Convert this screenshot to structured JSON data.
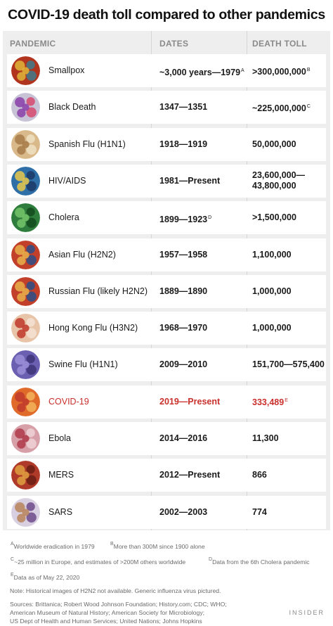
{
  "title": "COVID-19 death toll compared to other pandemics",
  "headers": {
    "pandemic": "PANDEMIC",
    "dates": "DATES",
    "toll": "DEATH TOLL"
  },
  "rows": [
    {
      "name": "Smallpox",
      "dates": "~3,000 years—1979",
      "dates_sup": "A",
      "toll": ">300,000,000",
      "toll_sup": "B",
      "colors": [
        "#b0341e",
        "#e0b63a",
        "#3f7d8c"
      ]
    },
    {
      "name": "Black Death",
      "dates": "1347—1351",
      "dates_sup": "",
      "toll": "~225,000,000",
      "toll_sup": "C",
      "colors": [
        "#c7c2d6",
        "#8a3ea8",
        "#d6486e"
      ]
    },
    {
      "name": "Spanish Flu (H1N1)",
      "dates": "1918—1919",
      "dates_sup": "",
      "toll": "50,000,000",
      "toll_sup": "",
      "colors": [
        "#d9b98a",
        "#a47a48",
        "#efe0c2"
      ]
    },
    {
      "name": "HIV/AIDS",
      "dates": "1981—Present",
      "dates_sup": "",
      "toll": "23,600,000—",
      "toll2": "43,800,000",
      "toll_sup": "",
      "colors": [
        "#2f6fa7",
        "#e8c94a",
        "#1b3a66"
      ]
    },
    {
      "name": "Cholera",
      "dates": "1899—1923",
      "dates_sup": "D",
      "toll": ">1,500,000",
      "toll_sup": "",
      "colors": [
        "#2e7d3c",
        "#74c36a",
        "#134a1f"
      ]
    },
    {
      "name": "Asian Flu (H2N2)",
      "dates": "1957—1958",
      "dates_sup": "",
      "toll": "1,100,000",
      "toll_sup": "",
      "colors": [
        "#c2402a",
        "#e8b04a",
        "#2a4f8a"
      ]
    },
    {
      "name": "Russian Flu (likely H2N2)",
      "dates": "1889—1890",
      "dates_sup": "",
      "toll": "1,000,000",
      "toll_sup": "",
      "colors": [
        "#c2402a",
        "#e8b04a",
        "#2a4f8a"
      ]
    },
    {
      "name": "Hong Kong Flu (H3N2)",
      "dates": "1968—1970",
      "dates_sup": "",
      "toll": "1,000,000",
      "toll_sup": "",
      "colors": [
        "#e8c4a8",
        "#c0392b",
        "#f4e3d4"
      ]
    },
    {
      "name": "Swine Flu (H1N1)",
      "dates": "2009—2010",
      "dates_sup": "",
      "toll": "151,700—575,400",
      "toll_sup": "",
      "colors": [
        "#6a5fb0",
        "#9b8fd8",
        "#3c3478"
      ]
    },
    {
      "name": "COVID-19",
      "dates": "2019—Present",
      "dates_sup": "",
      "toll": "333,489",
      "toll_sup": "E",
      "colors": [
        "#e06a2a",
        "#c0392b",
        "#f3b35a"
      ]
    },
    {
      "name": "Ebola",
      "dates": "2014—2016",
      "dates_sup": "",
      "toll": "11,300",
      "toll_sup": "",
      "colors": [
        "#d7a0a8",
        "#b03a4a",
        "#eed2d6"
      ]
    },
    {
      "name": "MERS",
      "dates": "2012—Present",
      "dates_sup": "",
      "toll": "866",
      "toll_sup": "",
      "colors": [
        "#b03a2a",
        "#e0a040",
        "#6a1f14"
      ]
    },
    {
      "name": "SARS",
      "dates": "2002—2003",
      "dates_sup": "",
      "toll": "774",
      "toll_sup": "",
      "colors": [
        "#d8cfe0",
        "#b8845a",
        "#6f4a8a"
      ]
    }
  ],
  "notes": {
    "a": "Worldwide eradication in 1979",
    "b": "More than 300M since 1900 alone",
    "c": "~25 million in Europe, and estimates of >200M others worldwide",
    "d": "Data from the 6th Cholera pandemic",
    "e": "Data as of May 22, 2020",
    "note": "Note: Historical images of H2N2 not available. Generic influenza virus pictured.",
    "sources1": "Sources: Brittanica; Robert Wood Johnson Foundation; History.com; CDC; WHO;",
    "sources2": "American Museum of Natural History; American Society for Microbiology;",
    "sources3": "US Dept of Health and Human Services; United Nations; Johns Hopkins"
  },
  "brand": "INSIDER"
}
